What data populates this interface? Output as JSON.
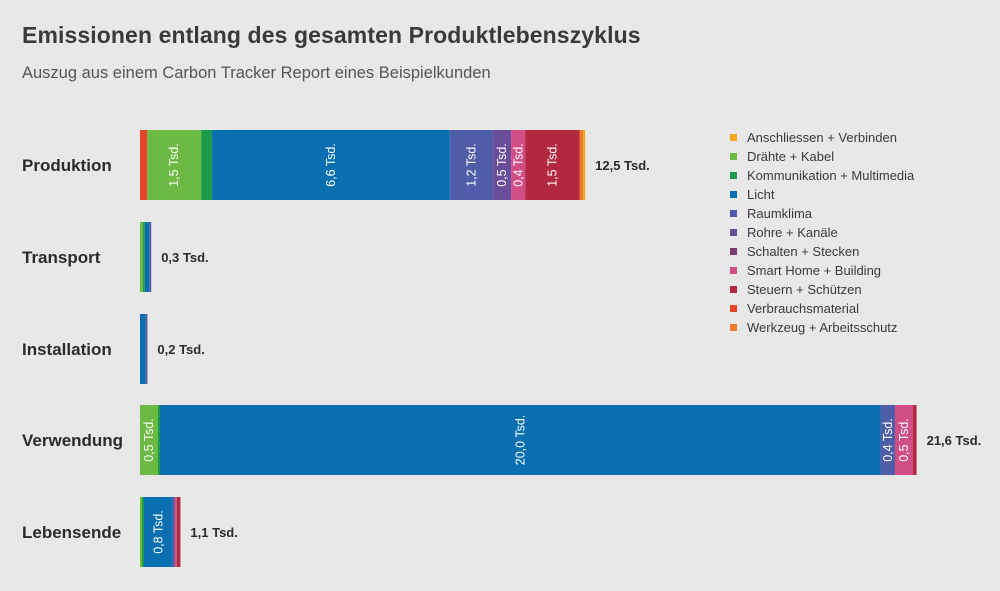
{
  "chart_data": {
    "type": "bar",
    "orientation": "horizontal",
    "stacked": true,
    "title": "Emissionen entlang des gesamten Produktlebenszyklus",
    "subtitle": "Auszug aus einem Carbon Tracker Report eines Beispielkunden",
    "unit": "Tsd.",
    "legend_position": "right",
    "series": [
      {
        "name": "Anschliessen + Verbinden",
        "color": "#f2a81d"
      },
      {
        "name": "Drähte + Kabel",
        "color": "#6cb944"
      },
      {
        "name": "Kommunikation + Multimedia",
        "color": "#1a9a4a"
      },
      {
        "name": "Licht",
        "color": "#0a6fb0"
      },
      {
        "name": "Raumklima",
        "color": "#4f5da8"
      },
      {
        "name": "Rohre + Kanäle",
        "color": "#6a4d98"
      },
      {
        "name": "Schalten + Stecken",
        "color": "#7e3d70"
      },
      {
        "name": "Smart Home + Building",
        "color": "#d14d86"
      },
      {
        "name": "Steuern + Schützen",
        "color": "#b2283e"
      },
      {
        "name": "Verbrauchsmaterial",
        "color": "#e2452a"
      },
      {
        "name": "Werkzeug + Arbeitsschutz",
        "color": "#f07a26"
      }
    ],
    "rows": [
      {
        "category": "Produktion",
        "total": "12,5 Tsd.",
        "segments": [
          {
            "series": "Verbrauchsmaterial",
            "value": 0.2,
            "label": ""
          },
          {
            "series": "Drähte + Kabel",
            "value": 1.5,
            "label": "1,5 Tsd."
          },
          {
            "series": "Kommunikation + Multimedia",
            "value": 0.3,
            "label": ""
          },
          {
            "series": "Licht",
            "value": 6.6,
            "label": "6,6 Tsd."
          },
          {
            "series": "Raumklima",
            "value": 1.2,
            "label": "1,2 Tsd."
          },
          {
            "series": "Rohre + Kanäle",
            "value": 0.5,
            "label": "0,5 Tsd."
          },
          {
            "series": "Smart Home + Building",
            "value": 0.4,
            "label": "0,4 Tsd."
          },
          {
            "series": "Steuern + Schützen",
            "value": 1.5,
            "label": "1,5 Tsd."
          },
          {
            "series": "Werkzeug + Arbeitsschutz",
            "value": 0.1,
            "label": ""
          },
          {
            "series": "Anschliessen + Verbinden",
            "value": 0.05,
            "label": ""
          }
        ]
      },
      {
        "category": "Transport",
        "total": "0,3 Tsd.",
        "segments": [
          {
            "series": "Drähte + Kabel",
            "value": 0.08,
            "label": ""
          },
          {
            "series": "Kommunikation + Multimedia",
            "value": 0.05,
            "label": ""
          },
          {
            "series": "Licht",
            "value": 0.12,
            "label": ""
          },
          {
            "series": "Raumklima",
            "value": 0.05,
            "label": ""
          }
        ]
      },
      {
        "category": "Installation",
        "total": "0,2 Tsd.",
        "segments": [
          {
            "series": "Licht",
            "value": 0.15,
            "label": ""
          },
          {
            "series": "Raumklima",
            "value": 0.05,
            "label": ""
          }
        ]
      },
      {
        "category": "Verwendung",
        "total": "21,6 Tsd.",
        "segments": [
          {
            "series": "Drähte + Kabel",
            "value": 0.5,
            "label": "0,5 Tsd."
          },
          {
            "series": "Kommunikation + Multimedia",
            "value": 0.05,
            "label": ""
          },
          {
            "series": "Licht",
            "value": 20.0,
            "label": "20,0 Tsd."
          },
          {
            "series": "Raumklima",
            "value": 0.4,
            "label": "0,4 Tsd."
          },
          {
            "series": "Smart Home + Building",
            "value": 0.5,
            "label": "0,5 Tsd."
          },
          {
            "series": "Steuern + Schützen",
            "value": 0.1,
            "label": ""
          }
        ]
      },
      {
        "category": "Lebensende",
        "total": "1,1 Tsd.",
        "segments": [
          {
            "series": "Drähte + Kabel",
            "value": 0.05,
            "label": ""
          },
          {
            "series": "Kommunikation + Multimedia",
            "value": 0.05,
            "label": ""
          },
          {
            "series": "Licht",
            "value": 0.8,
            "label": "0,8 Tsd."
          },
          {
            "series": "Rohre + Kanäle",
            "value": 0.05,
            "label": ""
          },
          {
            "series": "Smart Home + Building",
            "value": 0.05,
            "label": ""
          },
          {
            "series": "Steuern + Schützen",
            "value": 0.1,
            "label": ""
          }
        ]
      }
    ]
  }
}
